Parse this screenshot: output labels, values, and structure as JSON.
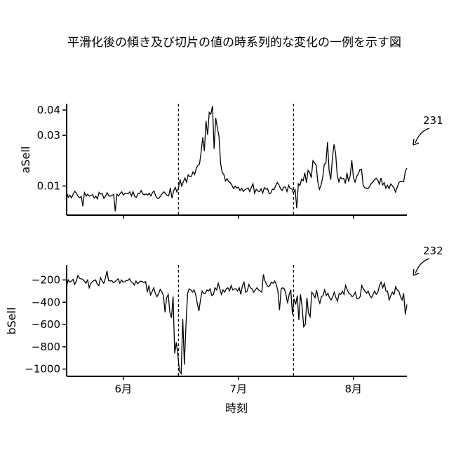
{
  "figure": {
    "title": "平滑化後の傾き及び切片の値の時系列的な変化の一例を示す図",
    "xlabel": "時刻"
  },
  "chart_data": [
    {
      "type": "line",
      "ref": "231",
      "ylabel": "aSell",
      "x_ticks": [
        "6月",
        "7月",
        "8月"
      ],
      "y_ticks": [
        "0.01",
        "0.03",
        "0.04"
      ],
      "y_tick_values": [
        0.01,
        0.03,
        0.04
      ],
      "ylim": [
        -0.0015,
        0.0425
      ],
      "xlim": [
        0,
        210
      ],
      "x_tick_positions": [
        35,
        106,
        177
      ],
      "vlines": [
        69,
        140
      ],
      "series": [
        {
          "values": [
            0.0075,
            0.0055,
            0.0064,
            0.0053,
            0.0068,
            0.0079,
            0.0072,
            0.0059,
            0.0054,
            0.0059,
            0.002,
            0.0074,
            0.006,
            0.0068,
            0.006,
            0.0063,
            0.0066,
            0.0052,
            0.006,
            0.0049,
            0.0075,
            0.0068,
            0.007,
            0.0051,
            0.0061,
            0.0074,
            0.0061,
            0.006,
            0.0063,
            0.0067,
            0.0,
            0.0068,
            0.0061,
            0.007,
            0.0077,
            0.0064,
            0.0071,
            0.007,
            0.007,
            0.0077,
            0.0061,
            0.0078,
            0.0059,
            0.0055,
            0.007,
            0.007,
            0.0082,
            0.0069,
            0.0065,
            0.0069,
            0.0064,
            0.0072,
            0.0061,
            0.0075,
            0.008,
            0.006,
            0.0051,
            0.0052,
            0.0061,
            0.007,
            0.0077,
            0.007,
            0.0063,
            0.0061,
            0.0093,
            0.0052,
            0.008,
            0.0095,
            0.0077,
            0.0092,
            0.0126,
            0.01,
            0.0116,
            0.0132,
            0.0115,
            0.0144,
            0.0137,
            0.0138,
            0.0156,
            0.0145,
            0.017,
            0.0181,
            0.0187,
            0.0235,
            0.0292,
            0.0238,
            0.0357,
            0.0302,
            0.0391,
            0.0384,
            0.0416,
            0.0247,
            0.0369,
            0.033,
            0.0297,
            0.019,
            0.0153,
            0.0146,
            0.012,
            0.0129,
            0.0117,
            0.0113,
            0.0103,
            0.009,
            0.01,
            0.0092,
            0.0095,
            0.0082,
            0.0091,
            0.0079,
            0.0085,
            0.0089,
            0.0092,
            0.0078,
            0.0095,
            0.0109,
            0.0072,
            0.0087,
            0.008,
            0.0078,
            0.0089,
            0.0072,
            0.0094,
            0.0087,
            0.009,
            0.0069,
            0.0072,
            0.0088,
            0.0086,
            0.0101,
            0.0114,
            0.0105,
            0.0089,
            0.0082,
            0.0095,
            0.0096,
            0.0078,
            0.0103,
            0.009,
            0.0089,
            0.0071,
            0.0088,
            0.0012,
            0.0109,
            0.0102,
            0.0127,
            0.0121,
            0.0152,
            0.0113,
            0.0162,
            0.0154,
            0.0133,
            0.02,
            0.0191,
            0.0183,
            0.0117,
            0.0087,
            0.0103,
            0.0133,
            0.0185,
            0.0191,
            0.0273,
            0.016,
            0.0125,
            0.0209,
            0.0264,
            0.023,
            0.0143,
            0.0116,
            0.0135,
            0.0128,
            0.013,
            0.011,
            0.0152,
            0.0117,
            0.0141,
            0.0202,
            0.0133,
            0.0116,
            0.0138,
            0.0147,
            0.0165,
            0.0166,
            0.0103,
            0.0093,
            0.0092,
            0.009,
            0.0098,
            0.011,
            0.0116,
            0.0125,
            0.0131,
            0.0124,
            0.0107,
            0.0132,
            0.0104,
            0.0113,
            0.0091,
            0.0103,
            0.009,
            0.0108,
            0.0101,
            0.0092,
            0.0076,
            0.0095,
            0.0112,
            0.0119,
            0.0117,
            0.0117,
            0.0158,
            0.017
          ]
        }
      ]
    },
    {
      "type": "line",
      "ref": "232",
      "ylabel": "bSell",
      "x_ticks": [
        "6月",
        "7月",
        "8月"
      ],
      "y_ticks": [
        "−200",
        "−400",
        "−600",
        "−800",
        "−1000"
      ],
      "y_tick_values": [
        -200,
        -400,
        -600,
        -800,
        -1000
      ],
      "ylim": [
        -1065,
        -65
      ],
      "xlim": [
        0,
        210
      ],
      "x_tick_positions": [
        35,
        106,
        177
      ],
      "vlines": [
        69,
        140
      ],
      "series": [
        {
          "values": [
            -250,
            -200,
            -220,
            -210,
            -195,
            -240,
            -210,
            -160,
            -185,
            -190,
            -195,
            -210,
            -230,
            -200,
            -270,
            -230,
            -215,
            -205,
            -200,
            -240,
            -250,
            -180,
            -210,
            -230,
            -185,
            -120,
            -205,
            -210,
            -205,
            -225,
            -215,
            -200,
            -190,
            -230,
            -200,
            -220,
            -215,
            -205,
            -205,
            -190,
            -215,
            -225,
            -245,
            -210,
            -235,
            -220,
            -210,
            -215,
            -225,
            -215,
            -310,
            -250,
            -335,
            -305,
            -270,
            -320,
            -350,
            -325,
            -285,
            -305,
            -340,
            -490,
            -360,
            -330,
            -490,
            -540,
            -350,
            -860,
            -760,
            -880,
            -1020,
            -1040,
            -550,
            -960,
            -600,
            -320,
            -280,
            -290,
            -310,
            -290,
            -330,
            -410,
            -480,
            -380,
            -300,
            -320,
            -320,
            -290,
            -300,
            -280,
            -340,
            -330,
            -270,
            -290,
            -230,
            -280,
            -330,
            -290,
            -310,
            -280,
            -270,
            -300,
            -250,
            -290,
            -280,
            -280,
            -300,
            -270,
            -330,
            -250,
            -220,
            -310,
            -300,
            -240,
            -270,
            -280,
            -310,
            -290,
            -270,
            -290,
            -300,
            -310,
            -150,
            -210,
            -240,
            -260,
            -250,
            -220,
            -230,
            -210,
            -240,
            -300,
            -470,
            -280,
            -270,
            -280,
            -330,
            -410,
            -330,
            -290,
            -510,
            -370,
            -420,
            -340,
            -560,
            -330,
            -440,
            -620,
            -600,
            -360,
            -500,
            -530,
            -310,
            -330,
            -360,
            -290,
            -370,
            -410,
            -350,
            -340,
            -290,
            -340,
            -320,
            -360,
            -380,
            -350,
            -310,
            -360,
            -390,
            -320,
            -330,
            -300,
            -330,
            -250,
            -290,
            -320,
            -330,
            -350,
            -340,
            -310,
            -370,
            -370,
            -350,
            -250,
            -280,
            -300,
            -320,
            -300,
            -340,
            -360,
            -330,
            -300,
            -330,
            -310,
            -250,
            -220,
            -270,
            -230,
            -300,
            -300,
            -380,
            -340,
            -310,
            -330,
            -260,
            -290,
            -300,
            -350,
            -380,
            -320,
            -510,
            -420
          ]
        }
      ]
    }
  ]
}
